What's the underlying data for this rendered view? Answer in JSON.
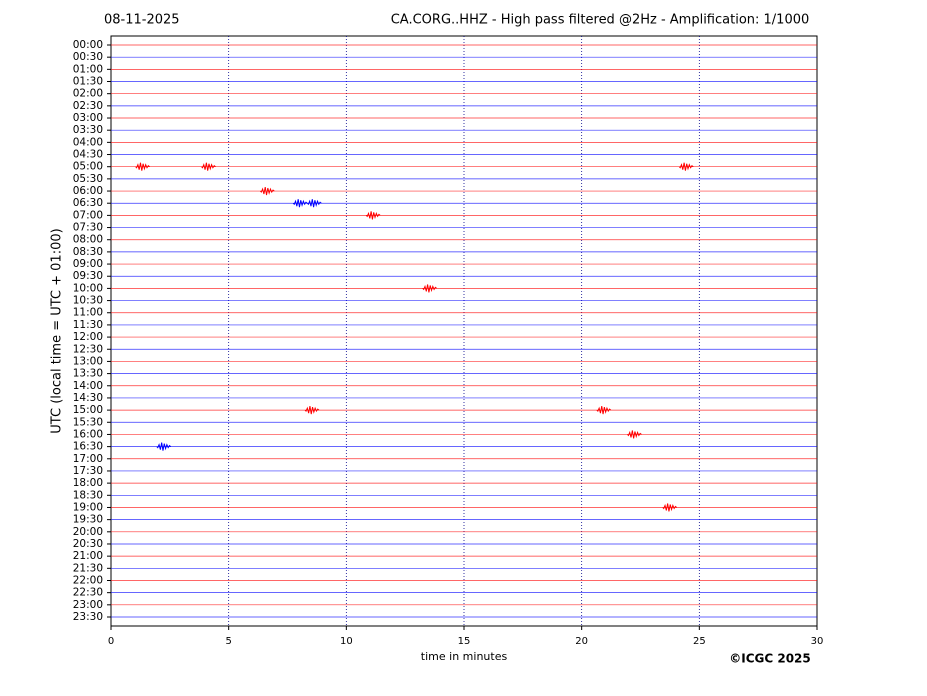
{
  "chart_data": {
    "type": "helicorder",
    "date": "08-11-2025",
    "title": "CA.CORG..HHZ - High pass filtered @2Hz - Amplification: 1/1000",
    "y_label": "UTC (local time = UTC + 01:00)",
    "x_label": "time in minutes",
    "copyright": "©ICGC 2025",
    "rows": [
      "00:00",
      "00:30",
      "01:00",
      "01:30",
      "02:00",
      "02:30",
      "03:00",
      "03:30",
      "04:00",
      "04:30",
      "05:00",
      "05:30",
      "06:00",
      "06:30",
      "07:00",
      "07:30",
      "08:00",
      "08:30",
      "09:00",
      "09:30",
      "10:00",
      "10:30",
      "11:00",
      "11:30",
      "12:00",
      "12:30",
      "13:00",
      "13:30",
      "14:00",
      "14:30",
      "15:00",
      "15:30",
      "16:00",
      "16:30",
      "17:00",
      "17:30",
      "18:00",
      "18:30",
      "19:00",
      "19:30",
      "20:00",
      "20:30",
      "21:00",
      "21:30",
      "22:00",
      "22:30",
      "23:00",
      "23:30"
    ],
    "trace_colors": [
      "#ff0000",
      "#0000ff"
    ],
    "xlim": [
      0,
      30
    ],
    "xticks": [
      0,
      5,
      10,
      15,
      20,
      25,
      30
    ],
    "grid": true,
    "events": [
      {
        "row": "05:00",
        "minute": 1.3
      },
      {
        "row": "05:00",
        "minute": 4.1
      },
      {
        "row": "05:00",
        "minute": 24.4
      },
      {
        "row": "06:00",
        "minute": 6.6
      },
      {
        "row": "06:30",
        "minute": 8.0
      },
      {
        "row": "06:30",
        "minute": 8.6
      },
      {
        "row": "07:00",
        "minute": 11.1
      },
      {
        "row": "10:00",
        "minute": 13.5
      },
      {
        "row": "15:00",
        "minute": 8.5
      },
      {
        "row": "15:00",
        "minute": 20.9
      },
      {
        "row": "16:00",
        "minute": 22.2
      },
      {
        "row": "16:30",
        "minute": 2.2
      },
      {
        "row": "19:00",
        "minute": 23.7
      }
    ]
  }
}
